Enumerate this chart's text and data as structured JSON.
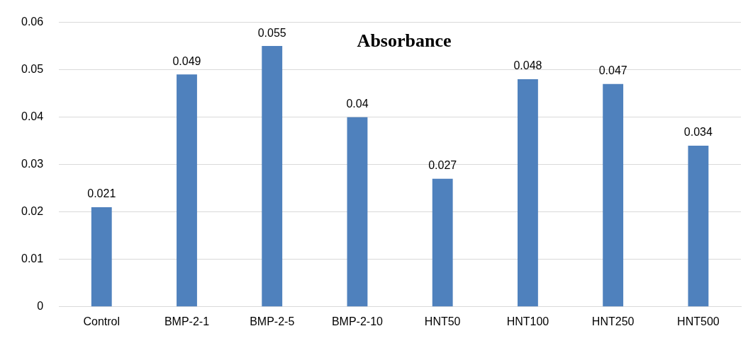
{
  "chart_data": {
    "type": "bar",
    "title": "Absorbance",
    "categories": [
      "Control",
      "BMP-2-1",
      "BMP-2-5",
      "BMP-2-10",
      "HNT50",
      "HNT100",
      "HNT250",
      "HNT500"
    ],
    "values": [
      0.021,
      0.049,
      0.055,
      0.04,
      0.027,
      0.048,
      0.047,
      0.034
    ],
    "color": "#4f81bd",
    "ylim": [
      0,
      0.06
    ],
    "yticks": [
      0,
      0.01,
      0.02,
      0.03,
      0.04,
      0.05,
      0.06
    ],
    "grid": "y",
    "data_labels": true
  }
}
